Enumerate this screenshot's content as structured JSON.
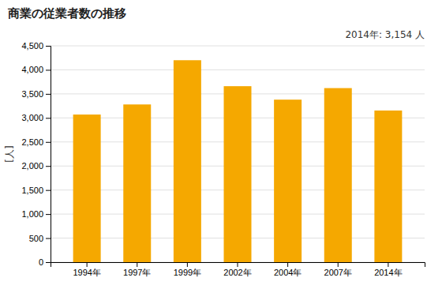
{
  "chart_data": {
    "type": "bar",
    "title": "商業の従業者数の推移",
    "ylabel": "[人]",
    "annotation": "2014年: 3,154 人",
    "categories": [
      "1994年",
      "1997年",
      "1999年",
      "2002年",
      "2004年",
      "2007年",
      "2014年"
    ],
    "values": [
      3070,
      3280,
      4200,
      3660,
      3380,
      3620,
      3154
    ],
    "color": "#F5A800",
    "ylim": [
      0,
      4500
    ],
    "yticks": [
      0,
      500,
      {
        "value": 1000,
        "label": "1,000"
      },
      {
        "value": 1500,
        "label": "1,500"
      },
      {
        "value": 2000,
        "label": "2,000"
      },
      {
        "value": 2500,
        "label": "2,500"
      },
      {
        "value": 3000,
        "label": "3,000"
      },
      {
        "value": 3500,
        "label": "3,500"
      },
      {
        "value": 4000,
        "label": "4,000"
      },
      {
        "value": 4500,
        "label": "4,500"
      }
    ],
    "grid": true
  }
}
